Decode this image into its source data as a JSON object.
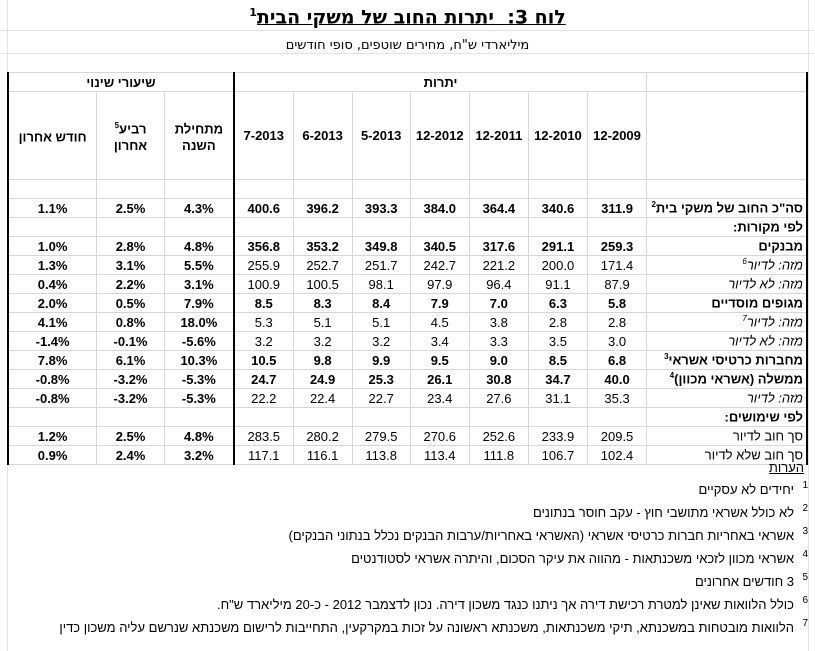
{
  "title": {
    "prefix": "לוח 3:",
    "main": "יתרות החוב של משקי הבית",
    "sup": "1"
  },
  "subtitle": "מיליארדי ש\"ח, מחירים שוטפים, סופי חודשים",
  "header": {
    "group_balances": "יתרות",
    "group_changes": "שיעורי שינוי",
    "columns": [
      "12-2009",
      "12-2010",
      "12-2011",
      "12-2012",
      "5-2013",
      "6-2013",
      "7-2013"
    ],
    "change_cols": [
      {
        "line1": "מתחילת",
        "line2": "השנה",
        "sup": ""
      },
      {
        "line1": "רביע",
        "line2": "אחרון",
        "sup": "5"
      },
      {
        "line1": "חודש אחרון",
        "line2": "",
        "sup": ""
      }
    ]
  },
  "rows": [
    {
      "label": "סה\"כ החוב של משקי בית",
      "sup": "2",
      "style": "bold",
      "values": [
        "311.9",
        "340.6",
        "364.4",
        "384.0",
        "393.3",
        "396.2",
        "400.6"
      ],
      "changes": [
        "4.3%",
        "2.5%",
        "1.1%"
      ]
    },
    {
      "label": "לפי מקורות:",
      "sup": "",
      "style": "bold",
      "values": [
        "",
        "",
        "",
        "",
        "",
        "",
        ""
      ],
      "changes": [
        "",
        "",
        ""
      ]
    },
    {
      "label": "מבנקים",
      "sup": "",
      "style": "bold",
      "values": [
        "259.3",
        "291.1",
        "317.6",
        "340.5",
        "349.8",
        "353.2",
        "356.8"
      ],
      "changes": [
        "4.8%",
        "2.8%",
        "1.0%"
      ]
    },
    {
      "label": "מזה: לדיור",
      "sup": "6",
      "style": "italic",
      "values": [
        "171.4",
        "200.0",
        "221.2",
        "242.7",
        "251.7",
        "252.7",
        "255.9"
      ],
      "changes": [
        "5.5%",
        "3.1%",
        "1.3%"
      ]
    },
    {
      "label": "מזה: לא לדיור",
      "sup": "",
      "style": "italic",
      "values": [
        "87.9",
        "91.1",
        "96.4",
        "97.9",
        "98.1",
        "100.5",
        "100.9"
      ],
      "changes": [
        "3.1%",
        "2.2%",
        "0.4%"
      ]
    },
    {
      "label": "מגופים מוסדיים",
      "sup": "",
      "style": "bold",
      "values": [
        "5.8",
        "6.3",
        "7.0",
        "7.9",
        "8.4",
        "8.3",
        "8.5"
      ],
      "changes": [
        "7.9%",
        "0.5%",
        "2.0%"
      ]
    },
    {
      "label": "מזה: לדיור",
      "sup": "7",
      "style": "italic",
      "values": [
        "2.8",
        "2.8",
        "3.8",
        "4.5",
        "5.1",
        "5.1",
        "5.3"
      ],
      "changes": [
        "18.0%",
        "0.8%",
        "4.1%"
      ]
    },
    {
      "label": "מזה: לא לדיור",
      "sup": "",
      "style": "italic",
      "values": [
        "3.0",
        "3.5",
        "3.3",
        "3.4",
        "3.2",
        "3.2",
        "3.2"
      ],
      "changes": [
        "-5.6%",
        "-0.1%",
        "-1.4%"
      ]
    },
    {
      "label": "מחברות כרטיסי אשראי",
      "sup": "3",
      "style": "bold",
      "values": [
        "6.8",
        "8.5",
        "9.0",
        "9.5",
        "9.9",
        "9.8",
        "10.5"
      ],
      "changes": [
        "10.3%",
        "6.1%",
        "7.8%"
      ]
    },
    {
      "label": "ממשלה (אשראי מכוון)",
      "sup": "4",
      "style": "bold",
      "values": [
        "40.0",
        "34.7",
        "30.8",
        "26.1",
        "25.3",
        "24.9",
        "24.7"
      ],
      "changes": [
        "-5.3%",
        "-3.2%",
        "-0.8%"
      ]
    },
    {
      "label": "מזה: לדיור",
      "sup": "",
      "style": "italic",
      "values": [
        "35.3",
        "31.1",
        "27.6",
        "23.4",
        "22.7",
        "22.4",
        "22.2"
      ],
      "changes": [
        "-5.3%",
        "-3.2%",
        "-0.8%"
      ]
    },
    {
      "label": "לפי שימושים:",
      "sup": "",
      "style": "bold",
      "values": [
        "",
        "",
        "",
        "",
        "",
        "",
        ""
      ],
      "changes": [
        "",
        "",
        ""
      ]
    },
    {
      "label": "סך חוב לדיור",
      "sup": "",
      "style": "plain",
      "values": [
        "209.5",
        "233.9",
        "252.6",
        "270.6",
        "279.5",
        "280.2",
        "283.5"
      ],
      "changes": [
        "4.8%",
        "2.5%",
        "1.2%"
      ]
    },
    {
      "label": "סך חוב שלא לדיור",
      "sup": "",
      "style": "plain",
      "values": [
        "102.4",
        "106.7",
        "111.8",
        "113.4",
        "113.8",
        "116.1",
        "117.1"
      ],
      "changes": [
        "3.2%",
        "2.4%",
        "0.9%"
      ]
    }
  ],
  "notes": {
    "title": "הערות",
    "items": [
      {
        "n": "1",
        "text": "יחידים לא עסקיים"
      },
      {
        "n": "2",
        "text": "לא כולל אשראי מתושבי חוץ - עקב חוסר בנתונים"
      },
      {
        "n": "3",
        "text": "אשראי באחריות חברות כרטיסי אשראי (האשראי באחריות/ערבות הבנקים נכלל בנתוני הבנקים)"
      },
      {
        "n": "4",
        "text": "אשראי מכוון לזכאי משכנתאות - מהווה את עיקר הסכום, והיתרה אשראי לסטודנטים"
      },
      {
        "n": "5",
        "text": "3 חודשים אחרונים"
      },
      {
        "n": "6",
        "text": "כולל הלוואות שאינן למטרת רכישת דירה אך ניתנו כנגד משכון דירה. נכון לדצמבר 2012 - כ-20 מיליארד ש\"ח."
      },
      {
        "n": "7",
        "text": "הלוואות מובטחות במשכנתא, תיקי משכנתאות, משכנתא ראשונה על זכות במקרקעין, התחייבות לרישום משכנתא שנרשם עליה משכון כדין"
      }
    ]
  }
}
